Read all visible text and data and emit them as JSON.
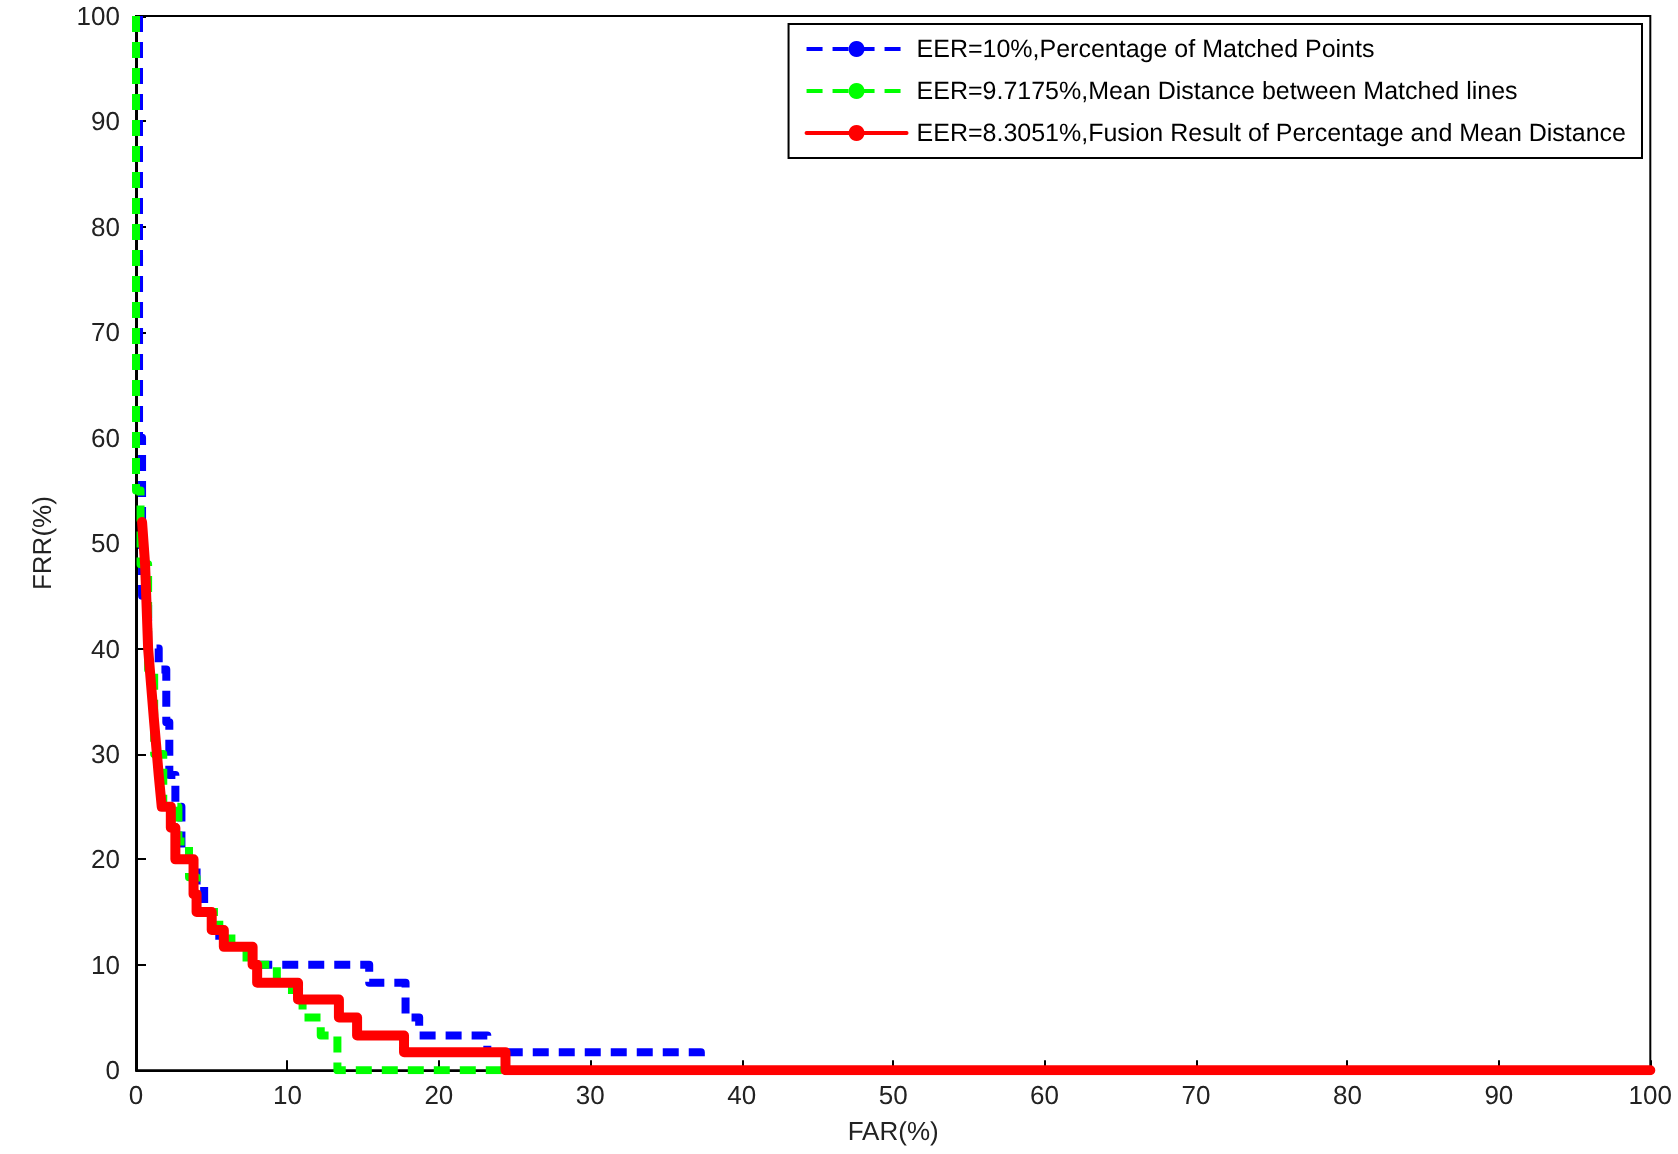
{
  "chart_data": {
    "type": "line",
    "xlabel": "FAR(%)",
    "ylabel": "FRR(%)",
    "xlim": [
      0,
      100
    ],
    "ylim": [
      0,
      100
    ],
    "xticks": [
      0,
      10,
      20,
      30,
      40,
      50,
      60,
      70,
      80,
      90,
      100
    ],
    "yticks": [
      0,
      10,
      20,
      30,
      40,
      50,
      60,
      70,
      80,
      90,
      100
    ],
    "grid": false,
    "legend": "top right",
    "marker": "none",
    "series": [
      {
        "name": "EER=10%,Percentage of Matched Points",
        "color": "#0000ff",
        "line_style": "dashed",
        "x": [
          0.2,
          0.2,
          0.4,
          0.4,
          0.8,
          0.8,
          1.5,
          1.5,
          2,
          2,
          2.2,
          2.2,
          2.6,
          2.6,
          3,
          3,
          4,
          4,
          4.5,
          4.5,
          5,
          5,
          5.5,
          5.5,
          7.6,
          7.6,
          15.4,
          15.4,
          17.8,
          17.8,
          18.7,
          18.7,
          23.2,
          23.2,
          37.3,
          37.3,
          100
        ],
        "values": [
          100,
          60,
          60,
          45,
          45,
          40,
          40,
          38,
          38,
          33,
          33,
          28,
          28,
          25,
          25,
          20,
          20,
          18,
          18,
          15,
          15,
          13.3,
          13.3,
          11.7,
          11.7,
          10,
          10,
          8.3,
          8.3,
          5,
          5,
          3.3,
          3.3,
          1.7,
          1.7,
          0,
          0
        ]
      },
      {
        "name": "EER=9.7175%,Mean Distance between Matched lines",
        "color": "#00ff00",
        "line_style": "dashed",
        "x": [
          0,
          0,
          0.3,
          0.3,
          0.8,
          0.8,
          1.2,
          1.2,
          1.8,
          1.8,
          2.8,
          2.8,
          3.5,
          3.5,
          4,
          4,
          5.5,
          5.5,
          6.3,
          6.3,
          7.3,
          7.3,
          9.3,
          9.3,
          10.3,
          10.3,
          11,
          11,
          12.2,
          12.2,
          13.3,
          13.3,
          100
        ],
        "values": [
          100,
          55,
          55,
          48,
          48,
          38,
          38,
          30,
          30,
          25,
          25,
          21.7,
          21.7,
          18.3,
          18.3,
          15,
          15,
          13.3,
          13.3,
          11.7,
          11.7,
          10,
          10,
          8.3,
          8.3,
          6.7,
          6.7,
          5,
          5,
          3.3,
          3.3,
          0,
          0
        ]
      },
      {
        "name": "EER=8.3051%,Fusion Result of Percentage and Mean Distance",
        "color": "#ff0000",
        "line_style": "solid",
        "x": [
          0.4,
          0.6,
          0.8,
          1.2,
          1.5,
          1.7,
          1.7,
          2.3,
          2.3,
          2.6,
          2.6,
          3.8,
          3.8,
          4.0,
          4.0,
          5.0,
          5.0,
          5.8,
          5.8,
          7.7,
          7.7,
          8.0,
          8.0,
          10.7,
          10.7,
          13.4,
          13.4,
          14.6,
          14.6,
          17.7,
          17.7,
          24.4,
          24.4,
          100
        ],
        "values": [
          52,
          48,
          40,
          33,
          28,
          25,
          25,
          25,
          23,
          23,
          20,
          20,
          16.7,
          16.7,
          15,
          15,
          13.3,
          13.3,
          11.7,
          11.7,
          10,
          10,
          8.3,
          8.3,
          6.7,
          6.7,
          5,
          5,
          3.3,
          3.3,
          1.7,
          1.7,
          0,
          0
        ]
      }
    ]
  }
}
